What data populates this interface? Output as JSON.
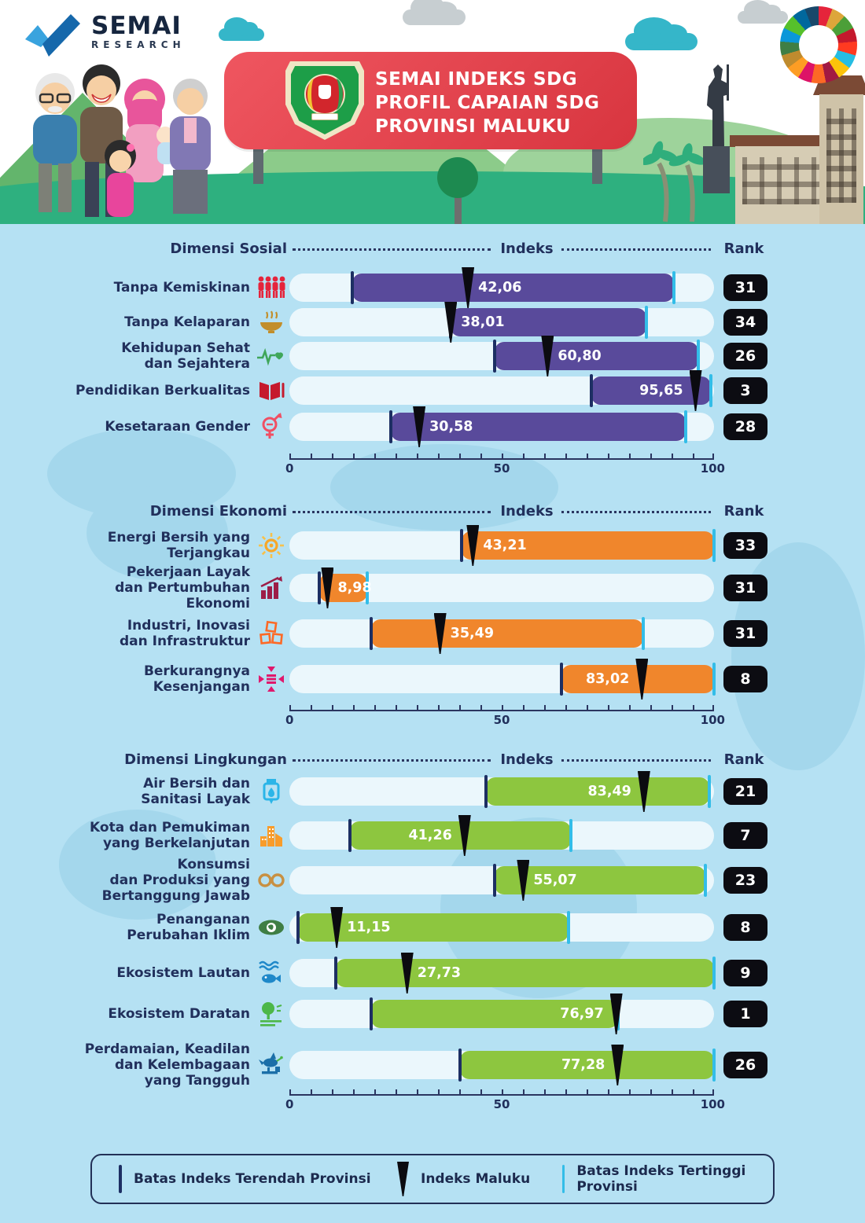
{
  "header": {
    "logo": {
      "name": "SEMAI",
      "sub": "RESEARCH"
    },
    "banner": {
      "line1": "SEMAI INDEKS SDG",
      "line2": "PROFIL CAPAIAN SDG",
      "line3": "PROVINSI MALUKU"
    }
  },
  "columns": {
    "indeks": "Indeks",
    "rank": "Rank"
  },
  "axis": {
    "min": 0,
    "max": 100,
    "ticks": [
      "0",
      "50",
      "100"
    ]
  },
  "legend": [
    {
      "icon": "lowest-bound-tick",
      "label": "Batas Indeks Terendah Provinsi",
      "color": "#1d2f63"
    },
    {
      "icon": "maluku-marker",
      "label": "Indeks Maluku",
      "color": "#0b0b10"
    },
    {
      "icon": "highest-bound-tick",
      "label": "Batas Indeks Tertinggi Provinsi",
      "color": "#33bde8"
    }
  ],
  "chart_data": [
    {
      "type": "bar",
      "title": "Dimensi Sosial",
      "color": "#594a9b",
      "xlim": [
        0,
        100
      ],
      "rows": [
        {
          "label": "Tanpa Kemiskinan",
          "icon": "no-poverty-people-icon",
          "min": 14.8,
          "max": 90.5,
          "value": 42.06,
          "display": "42,06",
          "rank": "31",
          "label_side": "right"
        },
        {
          "label": "Tanpa Kelaparan",
          "icon": "food-bowl-icon",
          "min": 38.0,
          "max": 84.0,
          "value": 38.01,
          "display": "38,01",
          "rank": "34",
          "label_side": "right"
        },
        {
          "label": "Kehidupan Sehat\ndan Sejahtera",
          "icon": "heartbeat-icon",
          "min": 48.4,
          "max": 96.3,
          "value": 60.8,
          "display": "60,80",
          "rank": "26",
          "label_side": "right"
        },
        {
          "label": "Pendidikan Berkualitas",
          "icon": "open-book-icon",
          "min": 71.2,
          "max": 99.2,
          "value": 95.65,
          "display": "95,65",
          "rank": "3",
          "label_side": "left"
        },
        {
          "label": "Kesetaraan Gender",
          "icon": "gender-equality-icon",
          "min": 23.8,
          "max": 93.3,
          "value": 30.58,
          "display": "30,58",
          "rank": "28",
          "label_side": "right"
        }
      ]
    },
    {
      "type": "bar",
      "title": "Dimensi Ekonomi",
      "color": "#f0862c",
      "xlim": [
        0,
        100
      ],
      "rows": [
        {
          "label": "Energi Bersih yang\nTerjangkau",
          "icon": "sun-energy-icon",
          "min": 40.6,
          "max": 100,
          "value": 43.21,
          "display": "43,21",
          "rank": "33",
          "label_side": "right"
        },
        {
          "label": "Pekerjaan Layak\ndan Pertumbuhan\nEkonomi",
          "icon": "growth-chart-icon",
          "min": 7.0,
          "max": 18.3,
          "value": 8.98,
          "display": "8,98",
          "rank": "31",
          "label_side": "right"
        },
        {
          "label": "Industri, Inovasi\ndan Infrastruktur",
          "icon": "industry-cubes-icon",
          "min": 19.2,
          "max": 83.4,
          "value": 35.49,
          "display": "35,49",
          "rank": "31",
          "label_side": "right"
        },
        {
          "label": "Berkurangnya\nKesenjangan",
          "icon": "reduced-inequality-icon",
          "min": 64.0,
          "max": 100,
          "value": 83.02,
          "display": "83,02",
          "rank": "8",
          "label_side": "left"
        }
      ]
    },
    {
      "type": "bar",
      "title": "Dimensi Lingkungan",
      "color": "#8dc63f",
      "xlim": [
        0,
        100
      ],
      "rows": [
        {
          "label": "Air Bersih dan\nSanitasi Layak",
          "icon": "clean-water-icon",
          "min": 46.3,
          "max": 98.8,
          "value": 83.49,
          "display": "83,49",
          "rank": "21",
          "label_side": "left"
        },
        {
          "label": "Kota dan Pemukiman\nyang Berkelanjutan",
          "icon": "city-icon",
          "min": 14.2,
          "max": 66.3,
          "value": 41.26,
          "display": "41,26",
          "rank": "7",
          "label_side": "left"
        },
        {
          "label": "Konsumsi\ndan Produksi yang\nBertanggung Jawab",
          "icon": "infinity-icon",
          "min": 48.3,
          "max": 98.0,
          "value": 55.07,
          "display": "55,07",
          "rank": "23",
          "label_side": "right"
        },
        {
          "label": "Penanganan\nPerubahan Iklim",
          "icon": "climate-eye-icon",
          "min": 2.0,
          "max": 65.7,
          "value": 11.15,
          "display": "11,15",
          "rank": "8",
          "label_side": "right"
        },
        {
          "label": "Ekosistem Lautan",
          "icon": "ocean-fish-icon",
          "min": 11.0,
          "max": 100,
          "value": 27.73,
          "display": "27,73",
          "rank": "9",
          "label_side": "right"
        },
        {
          "label": "Ekosistem Daratan",
          "icon": "land-tree-icon",
          "min": 19.2,
          "max": 77.4,
          "value": 76.97,
          "display": "76,97",
          "rank": "1",
          "label_side": "left"
        },
        {
          "label": "Perdamaian, Keadilan\ndan Kelembagaan\nyang Tangguh",
          "icon": "peace-dove-icon",
          "min": 40.2,
          "max": 100,
          "value": 77.28,
          "display": "77,28",
          "rank": "26",
          "label_side": "left"
        }
      ]
    }
  ],
  "layout": {
    "section_tops": [
      306,
      640,
      956
    ],
    "row_tops": [
      [
        348,
        392,
        435,
        479,
        525
      ],
      [
        676,
        730,
        788,
        846
      ],
      [
        989,
        1045,
        1102,
        1162,
        1220,
        1272,
        1337
      ]
    ],
    "axis_tops": [
      577,
      897,
      1386
    ]
  }
}
